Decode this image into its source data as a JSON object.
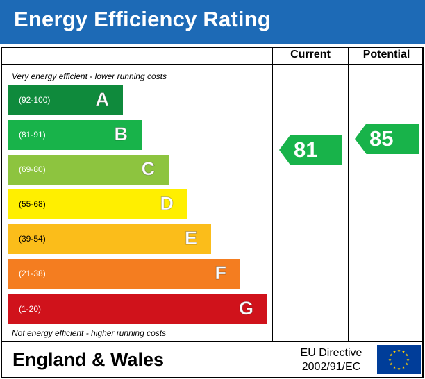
{
  "header": {
    "title": "Energy Efficiency Rating"
  },
  "columns": {
    "current": "Current",
    "potential": "Potential"
  },
  "captions": {
    "top": "Very energy efficient - lower running costs",
    "bottom": "Not energy efficient - higher running costs"
  },
  "colors": {
    "header_bg": "#1d6ab6",
    "flag_bg": "#003d99",
    "flag_stars": "#ffcc00"
  },
  "chart_data": {
    "type": "bar",
    "categories": [
      "A",
      "B",
      "C",
      "D",
      "E",
      "F",
      "G"
    ],
    "bands": [
      {
        "letter": "A",
        "range": "(92-100)",
        "color": "#0f8a3c",
        "range_color": "#ffffff"
      },
      {
        "letter": "B",
        "range": "(81-91)",
        "color": "#18b34a",
        "range_color": "#ffffff"
      },
      {
        "letter": "C",
        "range": "(69-80)",
        "color": "#8dc43f",
        "range_color": "#ffffff"
      },
      {
        "letter": "D",
        "range": "(55-68)",
        "color": "#ffef00",
        "range_color": "#000000"
      },
      {
        "letter": "E",
        "range": "(39-54)",
        "color": "#fbbd1a",
        "range_color": "#000000"
      },
      {
        "letter": "F",
        "range": "(21-38)",
        "color": "#f47d20",
        "range_color": "#ffffff"
      },
      {
        "letter": "G",
        "range": "(1-20)",
        "color": "#d0121b",
        "range_color": "#ffffff"
      }
    ],
    "current": {
      "value": 81,
      "band": "B",
      "color": "#18b34a"
    },
    "potential": {
      "value": 85,
      "band": "B",
      "color": "#18b34a"
    }
  },
  "footer": {
    "region": "England & Wales",
    "directive_line1": "EU Directive",
    "directive_line2": "2002/91/EC"
  },
  "icons": {
    "flag": "eu-flag-icon"
  }
}
